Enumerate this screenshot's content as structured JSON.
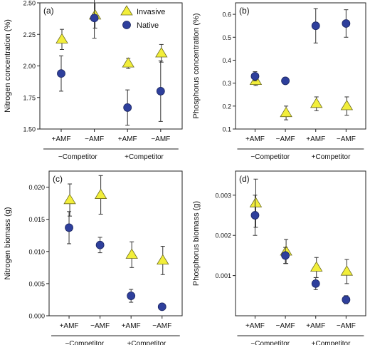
{
  "legend": {
    "invasive": "Invasive",
    "native": "Native"
  },
  "colors": {
    "invasive": "#f2ee3a",
    "native": "#2e3f9c",
    "axis": "#222222",
    "errorbar": "#333333"
  },
  "chart_data": [
    {
      "panel": "(a)",
      "type": "scatter",
      "ylabel": "Nitrogen concentration (%)",
      "ylim": [
        1.5,
        2.5
      ],
      "yticks": [
        "1.50",
        "1.75",
        "2.00",
        "2.25",
        "2.50"
      ],
      "categories": [
        "+AMF",
        "−AMF",
        "+AMF",
        "−AMF"
      ],
      "groups": [
        "−Competitor",
        "+Competitor"
      ],
      "legend": "top-right",
      "series": [
        {
          "name": "Invasive",
          "values": [
            2.21,
            2.4,
            2.02,
            2.1
          ],
          "err": [
            0.08,
            0.1,
            0.04,
            0.07
          ]
        },
        {
          "name": "Native",
          "values": [
            1.94,
            2.38,
            1.67,
            1.8
          ],
          "err": [
            0.14,
            0.16,
            0.14,
            0.24
          ]
        }
      ]
    },
    {
      "panel": "(b)",
      "type": "scatter",
      "ylabel": "Phosphorus concentration (%)",
      "ylim": [
        0.1,
        0.65
      ],
      "yticks": [
        "0.1",
        "0.2",
        "0.3",
        "0.4",
        "0.5",
        "0.6"
      ],
      "categories": [
        "+AMF",
        "−AMF",
        "+AMF",
        "−AMF"
      ],
      "groups": [
        "−Competitor",
        "+Competitor"
      ],
      "series": [
        {
          "name": "Invasive",
          "values": [
            0.31,
            0.17,
            0.21,
            0.2
          ],
          "err": [
            0.02,
            0.03,
            0.03,
            0.04
          ]
        },
        {
          "name": "Native",
          "values": [
            0.33,
            0.31,
            0.55,
            0.56
          ],
          "err": [
            0.02,
            0.0,
            0.075,
            0.06
          ]
        }
      ]
    },
    {
      "panel": "(c)",
      "type": "scatter",
      "ylabel": "Nitrogen biomass (g)",
      "ylim": [
        0.0,
        0.0225
      ],
      "yticks": [
        "0.000",
        "0.005",
        "0.010",
        "0.015",
        "0.020"
      ],
      "categories": [
        "+AMF",
        "−AMF",
        "+AMF",
        "−AMF"
      ],
      "groups": [
        "−Competitor",
        "+Competitor"
      ],
      "series": [
        {
          "name": "Invasive",
          "values": [
            0.018,
            0.0188,
            0.0095,
            0.0086
          ],
          "err": [
            0.0025,
            0.003,
            0.002,
            0.0022
          ]
        },
        {
          "name": "Native",
          "values": [
            0.0137,
            0.011,
            0.0031,
            0.0014
          ],
          "err": [
            0.0025,
            0.0012,
            0.001,
            0.0003
          ]
        }
      ]
    },
    {
      "panel": "(d)",
      "type": "scatter",
      "ylabel": "Phosphorus biomass (g)",
      "ylim": [
        0.0,
        0.0036
      ],
      "yticks": [
        "0.001",
        "0.002",
        "0.003"
      ],
      "ytick_values": [
        0.001,
        0.002,
        0.003
      ],
      "categories": [
        "+AMF",
        "−AMF",
        "+AMF",
        "−AMF"
      ],
      "groups": [
        "−Competitor",
        "+Competitor"
      ],
      "series": [
        {
          "name": "Invasive",
          "values": [
            0.0028,
            0.0016,
            0.0012,
            0.0011
          ],
          "err": [
            0.0006,
            0.0003,
            0.00025,
            0.0003
          ]
        },
        {
          "name": "Native",
          "values": [
            0.0025,
            0.0015,
            0.0008,
            0.0004
          ],
          "err": [
            0.0005,
            0.0002,
            0.00015,
            0.0001
          ]
        }
      ]
    }
  ]
}
